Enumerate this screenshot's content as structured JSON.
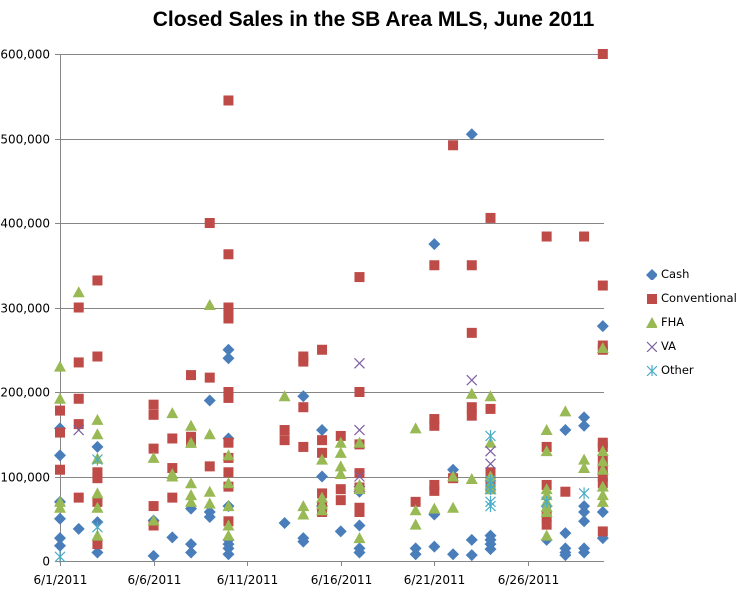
{
  "chart_data": {
    "type": "scatter",
    "title": "Closed Sales in the SB Area MLS, June 2011",
    "xlabel": "",
    "ylabel": "",
    "xlim": [
      "6/1/2011",
      "6/30/2011"
    ],
    "ylim": [
      0,
      600000
    ],
    "x_tick_labels": [
      "6/1/2011",
      "6/6/2011",
      "6/11/2011",
      "6/16/2011",
      "6/21/2011",
      "6/26/2011"
    ],
    "y_tick_labels": [
      "0",
      "100,000",
      "200,000",
      "300,000",
      "400,000",
      "500,000",
      "600,000"
    ],
    "y_ticks": [
      0,
      100000,
      200000,
      300000,
      400000,
      500000,
      600000
    ],
    "x_ticks_day": [
      1,
      6,
      11,
      16,
      21,
      26
    ],
    "grid": "horizontal",
    "legend_position": "right",
    "series": [
      {
        "name": "Cash",
        "color": "#4a7ebb",
        "marker": "diamond",
        "points": [
          [
            1,
            157000
          ],
          [
            1,
            125000
          ],
          [
            1,
            70000
          ],
          [
            1,
            50000
          ],
          [
            1,
            27000
          ],
          [
            1,
            18000
          ],
          [
            2,
            38000
          ],
          [
            3,
            135000
          ],
          [
            3,
            46000
          ],
          [
            3,
            10000
          ],
          [
            6,
            48000
          ],
          [
            6,
            6000
          ],
          [
            7,
            28000
          ],
          [
            8,
            62000
          ],
          [
            8,
            20000
          ],
          [
            8,
            10000
          ],
          [
            9,
            190000
          ],
          [
            9,
            58000
          ],
          [
            9,
            52000
          ],
          [
            10,
            250000
          ],
          [
            10,
            240000
          ],
          [
            10,
            145000
          ],
          [
            10,
            65000
          ],
          [
            10,
            25000
          ],
          [
            10,
            20000
          ],
          [
            10,
            15000
          ],
          [
            10,
            8000
          ],
          [
            13,
            45000
          ],
          [
            14,
            195000
          ],
          [
            14,
            27000
          ],
          [
            14,
            23000
          ],
          [
            15,
            155000
          ],
          [
            15,
            100000
          ],
          [
            15,
            65000
          ],
          [
            16,
            35000
          ],
          [
            17,
            88000
          ],
          [
            17,
            82000
          ],
          [
            17,
            42000
          ],
          [
            17,
            15000
          ],
          [
            17,
            10000
          ],
          [
            20,
            15000
          ],
          [
            20,
            8000
          ],
          [
            21,
            375000
          ],
          [
            21,
            55000
          ],
          [
            21,
            17000
          ],
          [
            22,
            108000
          ],
          [
            22,
            8000
          ],
          [
            23,
            505000
          ],
          [
            23,
            25000
          ],
          [
            23,
            7000
          ],
          [
            24,
            30000
          ],
          [
            24,
            25000
          ],
          [
            24,
            20000
          ],
          [
            24,
            14000
          ],
          [
            27,
            65000
          ],
          [
            27,
            25000
          ],
          [
            28,
            155000
          ],
          [
            28,
            33000
          ],
          [
            28,
            15000
          ],
          [
            28,
            10000
          ],
          [
            28,
            7000
          ],
          [
            29,
            170000
          ],
          [
            29,
            160000
          ],
          [
            29,
            65000
          ],
          [
            29,
            58000
          ],
          [
            29,
            47000
          ],
          [
            29,
            15000
          ],
          [
            29,
            10000
          ],
          [
            30,
            278000
          ],
          [
            30,
            58000
          ],
          [
            30,
            27000
          ]
        ]
      },
      {
        "name": "Conventional",
        "color": "#be4b48",
        "marker": "square",
        "points": [
          [
            1,
            178000
          ],
          [
            1,
            152000
          ],
          [
            1,
            108000
          ],
          [
            2,
            300000
          ],
          [
            2,
            235000
          ],
          [
            2,
            192000
          ],
          [
            2,
            162000
          ],
          [
            2,
            75000
          ],
          [
            3,
            332000
          ],
          [
            3,
            242000
          ],
          [
            3,
            105000
          ],
          [
            3,
            98000
          ],
          [
            3,
            70000
          ],
          [
            3,
            20000
          ],
          [
            6,
            185000
          ],
          [
            6,
            173000
          ],
          [
            6,
            133000
          ],
          [
            6,
            65000
          ],
          [
            6,
            42000
          ],
          [
            7,
            145000
          ],
          [
            7,
            110000
          ],
          [
            7,
            75000
          ],
          [
            8,
            220000
          ],
          [
            8,
            147000
          ],
          [
            8,
            140000
          ],
          [
            9,
            400000
          ],
          [
            9,
            217000
          ],
          [
            9,
            112000
          ],
          [
            10,
            545000
          ],
          [
            10,
            363000
          ],
          [
            10,
            300000
          ],
          [
            10,
            293000
          ],
          [
            10,
            287000
          ],
          [
            10,
            200000
          ],
          [
            10,
            193000
          ],
          [
            10,
            140000
          ],
          [
            10,
            122000
          ],
          [
            10,
            105000
          ],
          [
            10,
            88000
          ],
          [
            10,
            47000
          ],
          [
            13,
            155000
          ],
          [
            13,
            143000
          ],
          [
            14,
            242000
          ],
          [
            14,
            236000
          ],
          [
            14,
            182000
          ],
          [
            14,
            135000
          ],
          [
            15,
            250000
          ],
          [
            15,
            143000
          ],
          [
            15,
            128000
          ],
          [
            15,
            80000
          ],
          [
            15,
            65000
          ],
          [
            15,
            58000
          ],
          [
            16,
            148000
          ],
          [
            16,
            85000
          ],
          [
            16,
            72000
          ],
          [
            17,
            336000
          ],
          [
            17,
            200000
          ],
          [
            17,
            138000
          ],
          [
            17,
            104000
          ],
          [
            17,
            87000
          ],
          [
            17,
            63000
          ],
          [
            17,
            58000
          ],
          [
            20,
            70000
          ],
          [
            21,
            350000
          ],
          [
            21,
            168000
          ],
          [
            21,
            160000
          ],
          [
            21,
            90000
          ],
          [
            21,
            83000
          ],
          [
            22,
            492000
          ],
          [
            22,
            98000
          ],
          [
            23,
            350000
          ],
          [
            23,
            270000
          ],
          [
            23,
            182000
          ],
          [
            23,
            172000
          ],
          [
            24,
            406000
          ],
          [
            24,
            180000
          ],
          [
            24,
            105000
          ],
          [
            24,
            95000
          ],
          [
            24,
            90000
          ],
          [
            24,
            85000
          ],
          [
            27,
            384000
          ],
          [
            27,
            135000
          ],
          [
            27,
            90000
          ],
          [
            27,
            53000
          ],
          [
            27,
            43000
          ],
          [
            28,
            82000
          ],
          [
            29,
            384000
          ],
          [
            30,
            600000
          ],
          [
            30,
            326000
          ],
          [
            30,
            255000
          ],
          [
            30,
            250000
          ],
          [
            30,
            140000
          ],
          [
            30,
            135000
          ],
          [
            30,
            120000
          ],
          [
            30,
            110000
          ],
          [
            30,
            100000
          ],
          [
            30,
            92000
          ],
          [
            30,
            35000
          ]
        ]
      },
      {
        "name": "FHA",
        "color": "#98b954",
        "marker": "triangle",
        "points": [
          [
            1,
            230000
          ],
          [
            1,
            192000
          ],
          [
            1,
            70000
          ],
          [
            1,
            63000
          ],
          [
            2,
            318000
          ],
          [
            3,
            167000
          ],
          [
            3,
            150000
          ],
          [
            3,
            121000
          ],
          [
            3,
            80000
          ],
          [
            3,
            63000
          ],
          [
            3,
            30000
          ],
          [
            6,
            122000
          ],
          [
            6,
            48000
          ],
          [
            7,
            175000
          ],
          [
            7,
            103000
          ],
          [
            7,
            100000
          ],
          [
            8,
            160000
          ],
          [
            8,
            140000
          ],
          [
            8,
            92000
          ],
          [
            8,
            78000
          ],
          [
            8,
            70000
          ],
          [
            9,
            303000
          ],
          [
            9,
            150000
          ],
          [
            9,
            82000
          ],
          [
            9,
            68000
          ],
          [
            10,
            125000
          ],
          [
            10,
            92000
          ],
          [
            10,
            65000
          ],
          [
            10,
            42000
          ],
          [
            10,
            30000
          ],
          [
            13,
            195000
          ],
          [
            14,
            65000
          ],
          [
            14,
            55000
          ],
          [
            15,
            120000
          ],
          [
            15,
            75000
          ],
          [
            15,
            67000
          ],
          [
            15,
            60000
          ],
          [
            16,
            140000
          ],
          [
            16,
            128000
          ],
          [
            16,
            112000
          ],
          [
            16,
            103000
          ],
          [
            17,
            140000
          ],
          [
            17,
            90000
          ],
          [
            17,
            85000
          ],
          [
            17,
            27000
          ],
          [
            20,
            157000
          ],
          [
            20,
            60000
          ],
          [
            20,
            43000
          ],
          [
            21,
            62000
          ],
          [
            22,
            100000
          ],
          [
            22,
            63000
          ],
          [
            23,
            198000
          ],
          [
            23,
            97000
          ],
          [
            24,
            195000
          ],
          [
            24,
            140000
          ],
          [
            24,
            100000
          ],
          [
            24,
            90000
          ],
          [
            24,
            85000
          ],
          [
            27,
            155000
          ],
          [
            27,
            130000
          ],
          [
            27,
            85000
          ],
          [
            27,
            78000
          ],
          [
            27,
            70000
          ],
          [
            27,
            64000
          ],
          [
            27,
            58000
          ],
          [
            27,
            30000
          ],
          [
            28,
            177000
          ],
          [
            29,
            120000
          ],
          [
            29,
            110000
          ],
          [
            30,
            252000
          ],
          [
            30,
            130000
          ],
          [
            30,
            118000
          ],
          [
            30,
            108000
          ],
          [
            30,
            88000
          ],
          [
            30,
            78000
          ],
          [
            30,
            70000
          ]
        ]
      },
      {
        "name": "VA",
        "color": "#7d5fa0",
        "marker": "x",
        "points": [
          [
            2,
            155000
          ],
          [
            17,
            234000
          ],
          [
            17,
            155000
          ],
          [
            17,
            100000
          ],
          [
            23,
            214000
          ],
          [
            24,
            130000
          ],
          [
            24,
            115000
          ]
        ]
      },
      {
        "name": "Other",
        "color": "#4bacc6",
        "marker": "asterisk",
        "points": [
          [
            1,
            5000
          ],
          [
            3,
            120000
          ],
          [
            3,
            40000
          ],
          [
            24,
            148000
          ],
          [
            24,
            95000
          ],
          [
            24,
            90000
          ],
          [
            24,
            85000
          ],
          [
            24,
            70000
          ],
          [
            24,
            65000
          ],
          [
            27,
            70000
          ],
          [
            29,
            80000
          ]
        ]
      }
    ]
  }
}
